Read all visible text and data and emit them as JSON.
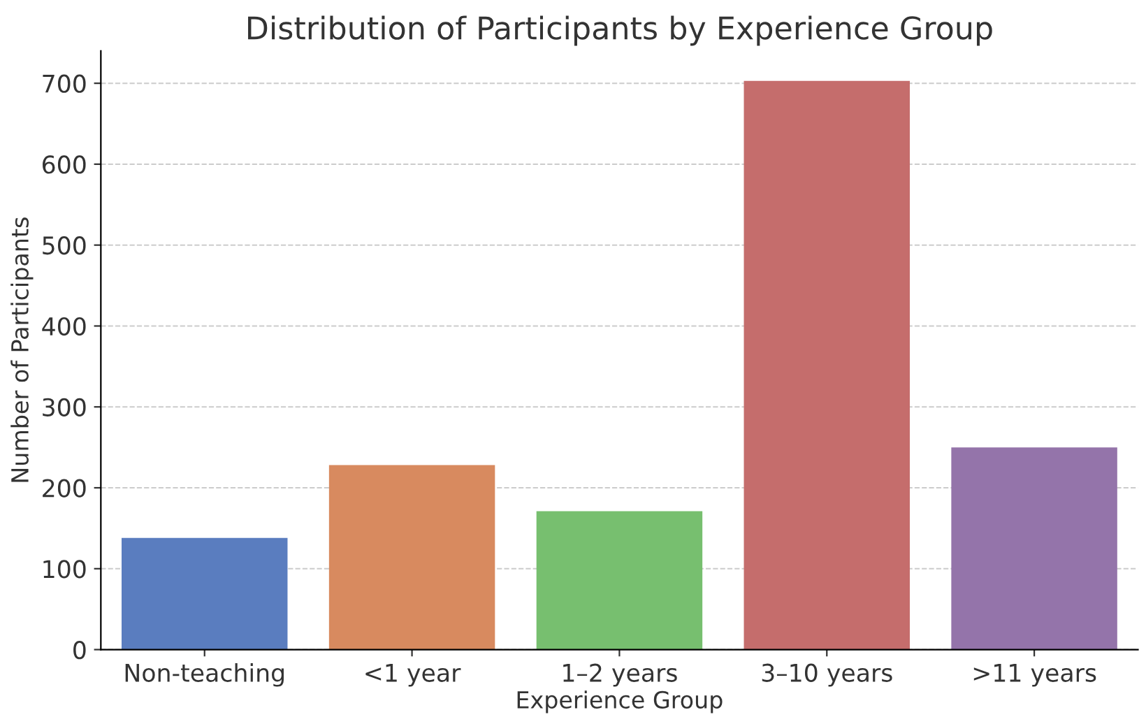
{
  "chart_data": {
    "type": "bar",
    "title": "Distribution of Participants by Experience Group",
    "xlabel": "Experience Group",
    "ylabel": "Number of Participants",
    "categories": [
      "Non-teaching",
      "<1 year",
      "1–2 years",
      "3–10 years",
      ">11 years"
    ],
    "values": [
      138,
      228,
      171,
      703,
      250
    ],
    "colors": [
      "#5a7dbf",
      "#d88a5f",
      "#77bf6f",
      "#c56d6c",
      "#9474aa"
    ],
    "ylim": [
      0,
      740
    ],
    "yticks": [
      0,
      100,
      200,
      300,
      400,
      500,
      600,
      700
    ],
    "grid": "y"
  }
}
